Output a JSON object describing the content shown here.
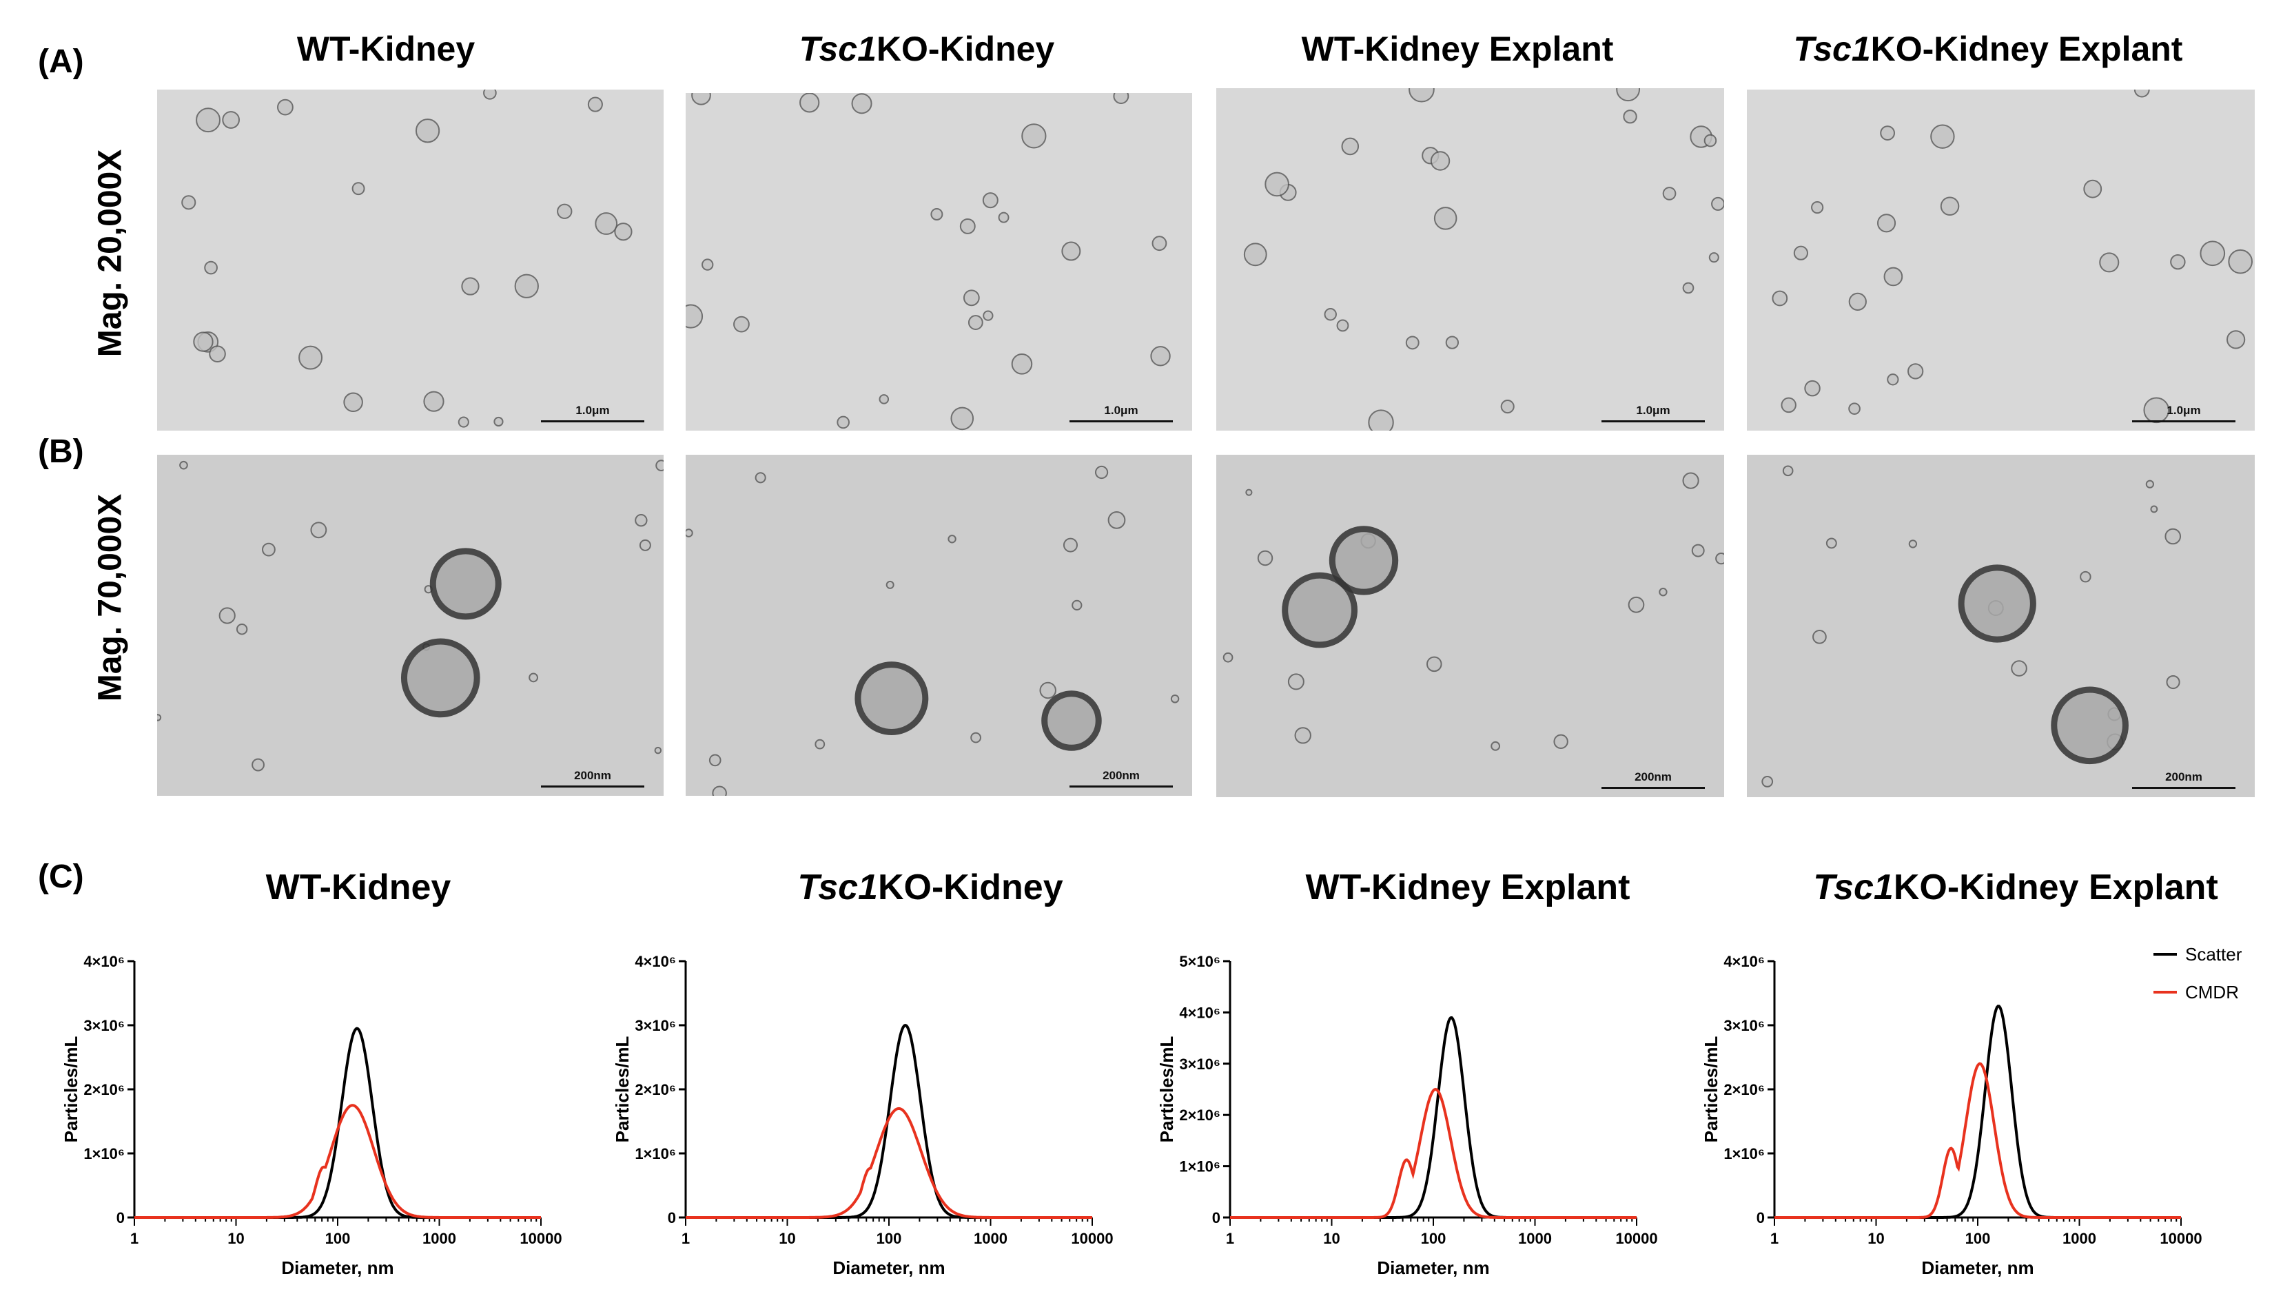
{
  "panels": {
    "a": "(A)",
    "b": "(B)",
    "c": "(C)"
  },
  "columns": [
    {
      "prefix_italic": "",
      "label": "WT-Kidney"
    },
    {
      "prefix_italic": "Tsc1",
      "label": "KO-Kidney"
    },
    {
      "prefix_italic": "",
      "label": "WT-Kidney Explant"
    },
    {
      "prefix_italic": "Tsc1",
      "label": "KO-Kidney Explant"
    }
  ],
  "rows": [
    {
      "label": "Mag. 20,000X",
      "scale_bar": "1.0μm"
    },
    {
      "label": "Mag. 70,000X",
      "scale_bar": "200nm"
    }
  ],
  "legend": {
    "scatter": "Scatter",
    "cmdr": "CMDR"
  },
  "colors": {
    "scatter": "#000000",
    "cmdr": "#e8321e"
  },
  "chart_data": [
    {
      "type": "line",
      "title": "WT-Kidney",
      "xlabel": "Diameter, nm",
      "ylabel": "Particles/mL",
      "xscale": "log",
      "xlim": [
        1,
        10000
      ],
      "ylim": [
        0,
        4000000
      ],
      "xticks": [
        "1",
        "10",
        "100",
        "1000",
        "10000"
      ],
      "yticks": [
        "0",
        "1×10⁶",
        "2×10⁶",
        "3×10⁶",
        "4×10⁶"
      ],
      "series": [
        {
          "name": "Scatter",
          "peak_x": 155,
          "peak_y": 2950000,
          "width": 0.15
        },
        {
          "name": "CMDR",
          "peak_x": 140,
          "peak_y": 1750000,
          "width": 0.21
        }
      ]
    },
    {
      "type": "line",
      "title": "Tsc1KO-Kidney",
      "xlabel": "Diameter, nm",
      "ylabel": "Particles/mL",
      "xscale": "log",
      "xlim": [
        1,
        10000
      ],
      "ylim": [
        0,
        4000000
      ],
      "xticks": [
        "1",
        "10",
        "100",
        "1000",
        "10000"
      ],
      "yticks": [
        "0",
        "1×10⁶",
        "2×10⁶",
        "3×10⁶",
        "4×10⁶"
      ],
      "series": [
        {
          "name": "Scatter",
          "peak_x": 145,
          "peak_y": 3000000,
          "width": 0.15
        },
        {
          "name": "CMDR",
          "peak_x": 125,
          "peak_y": 1700000,
          "width": 0.22
        }
      ]
    },
    {
      "type": "line",
      "title": "WT-Kidney Explant",
      "xlabel": "Diameter, nm",
      "ylabel": "Particles/mL",
      "xscale": "log",
      "xlim": [
        1,
        10000
      ],
      "ylim": [
        0,
        5000000
      ],
      "xticks": [
        "1",
        "10",
        "100",
        "1000",
        "10000"
      ],
      "yticks": [
        "0",
        "1×10⁶",
        "2×10⁶",
        "3×10⁶",
        "4×10⁶",
        "5×10⁶"
      ],
      "series": [
        {
          "name": "Scatter",
          "peak_x": 150,
          "peak_y": 3900000,
          "width": 0.13
        },
        {
          "name": "CMDR",
          "peak_x": 105,
          "peak_y": 2500000,
          "width": 0.15
        }
      ]
    },
    {
      "type": "line",
      "title": "Tsc1KO-Kidney Explant",
      "xlabel": "Diameter, nm",
      "ylabel": "Particles/mL",
      "xscale": "log",
      "xlim": [
        1,
        10000
      ],
      "ylim": [
        0,
        4000000
      ],
      "xticks": [
        "1",
        "10",
        "100",
        "1000",
        "10000"
      ],
      "yticks": [
        "0",
        "1×10⁶",
        "2×10⁶",
        "3×10⁶",
        "4×10⁶"
      ],
      "series": [
        {
          "name": "Scatter",
          "peak_x": 160,
          "peak_y": 3300000,
          "width": 0.13
        },
        {
          "name": "CMDR",
          "peak_x": 105,
          "peak_y": 2400000,
          "width": 0.14
        }
      ],
      "legend": "top-right"
    }
  ]
}
